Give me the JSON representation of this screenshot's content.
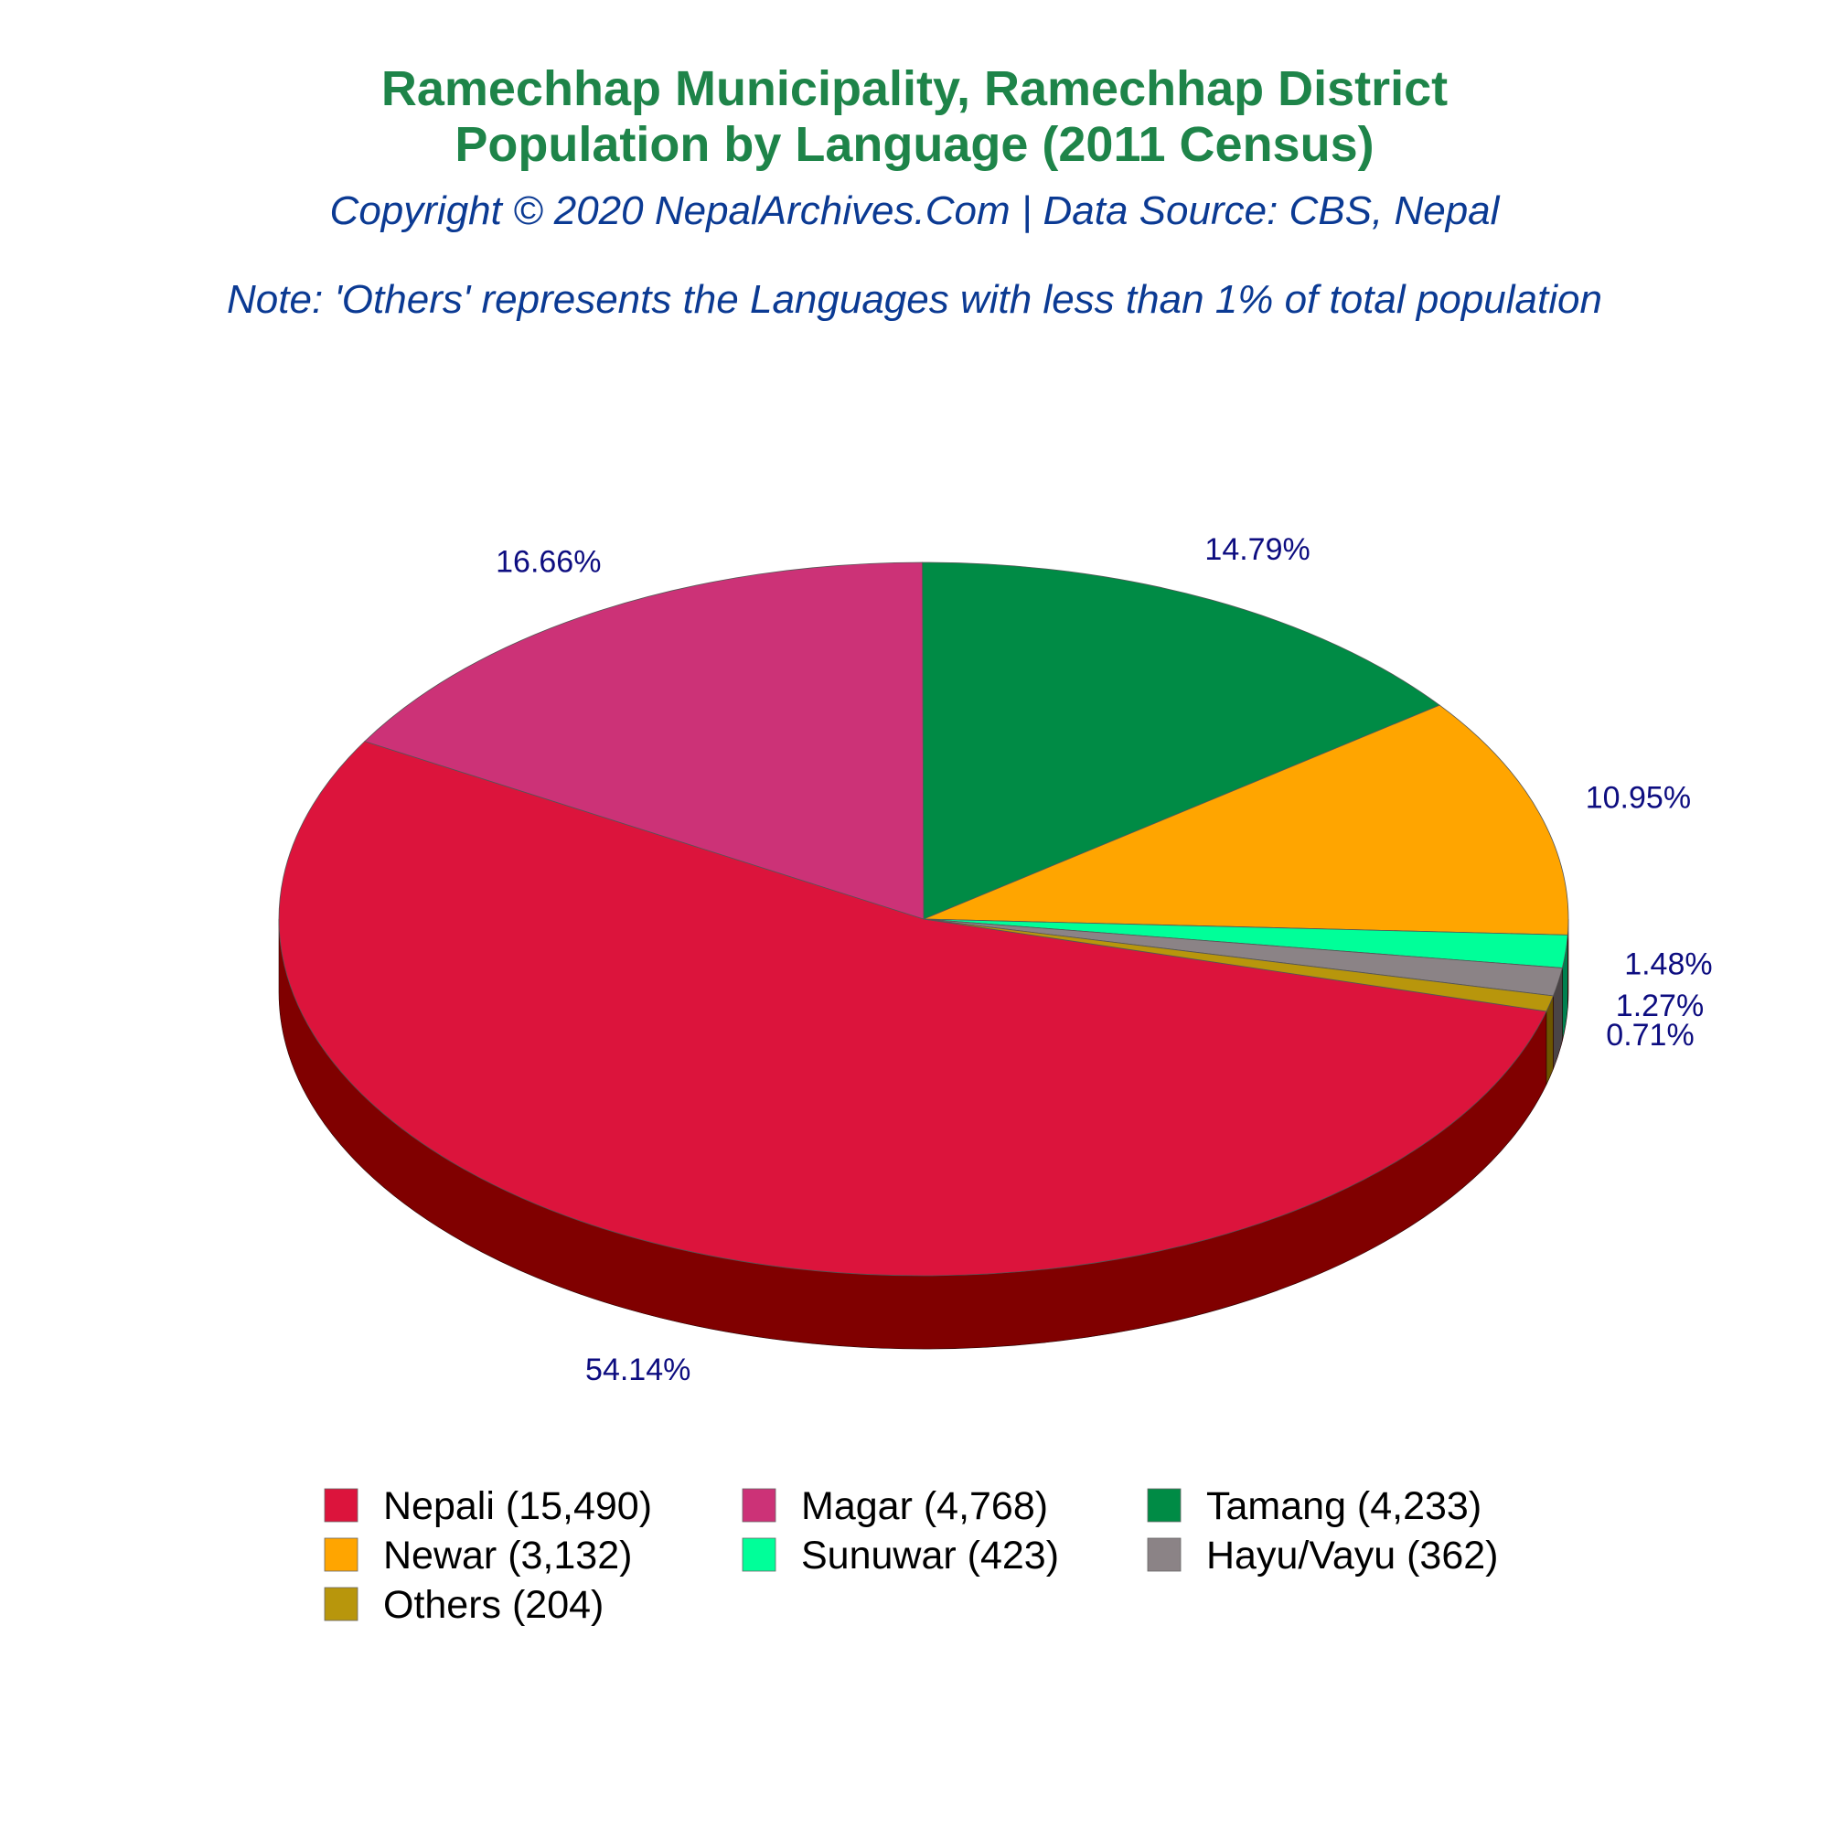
{
  "chart_data": {
    "type": "pie",
    "title_line1": "Ramechhap Municipality, Ramechhap District",
    "title_line2": "Population by Language (2011 Census)",
    "subtitle": "Copyright © 2020 NepalArchives.Com | Data Source: CBS, Nepal",
    "note": "Note: 'Others' represents the Languages with less than 1% of total population",
    "style": "3d",
    "legend_position": "bottom",
    "slices": [
      {
        "name": "Nepali",
        "value": 15490,
        "percent": 54.14,
        "label": "54.14%",
        "legend": "Nepali (15,490)",
        "color": "#dc143c",
        "side_color": "#800000"
      },
      {
        "name": "Magar",
        "value": 4768,
        "percent": 16.66,
        "label": "16.66%",
        "legend": "Magar (4,768)",
        "color": "#cc3277",
        "side_color": "#6b0020"
      },
      {
        "name": "Tamang",
        "value": 4233,
        "percent": 14.79,
        "label": "14.79%",
        "legend": "Tamang (4,233)",
        "color": "#008b45",
        "side_color": "#003300"
      },
      {
        "name": "Newar",
        "value": 3132,
        "percent": 10.95,
        "label": "10.95%",
        "legend": "Newar (3,132)",
        "color": "#ffa500",
        "side_color": "#a84a00"
      },
      {
        "name": "Sunuwar",
        "value": 423,
        "percent": 1.48,
        "label": "1.48%",
        "legend": "Sunuwar (423)",
        "color": "#00ff99",
        "side_color": "#008050"
      },
      {
        "name": "Hayu/Vayu",
        "value": 362,
        "percent": 1.27,
        "label": "1.27%",
        "legend": "Hayu/Vayu (362)",
        "color": "#8b8386",
        "side_color": "#4a4446"
      },
      {
        "name": "Others",
        "value": 204,
        "percent": 0.71,
        "label": "0.71%",
        "legend": "Others (204)",
        "color": "#b8960c",
        "side_color": "#6b5500"
      }
    ]
  }
}
